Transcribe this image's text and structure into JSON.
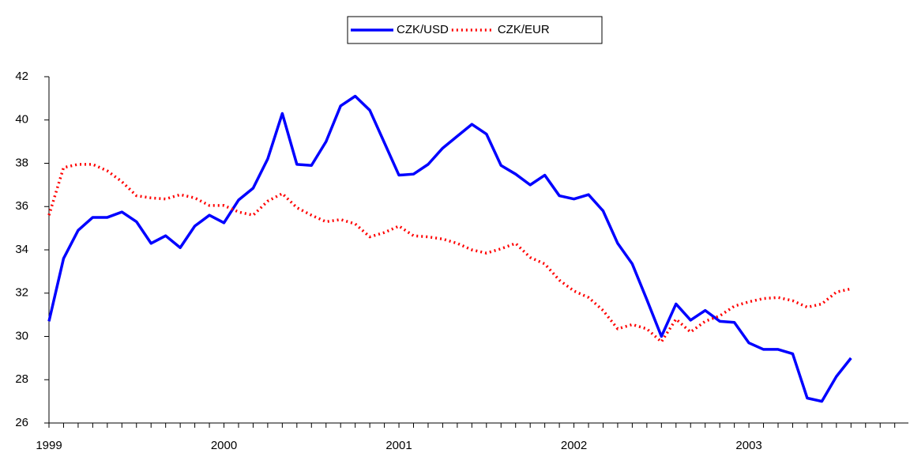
{
  "chart_data": {
    "type": "line",
    "categories": [
      "1999",
      null,
      null,
      null,
      null,
      null,
      null,
      null,
      null,
      null,
      null,
      null,
      "2000",
      null,
      null,
      null,
      null,
      null,
      null,
      null,
      null,
      null,
      null,
      null,
      "2001",
      null,
      null,
      null,
      null,
      null,
      null,
      null,
      null,
      null,
      null,
      null,
      "2002",
      null,
      null,
      null,
      null,
      null,
      null,
      null,
      null,
      null,
      null,
      null,
      "2003",
      null,
      null,
      null,
      null,
      null,
      null,
      null
    ],
    "series": [
      {
        "name": "CZK/USD",
        "color": "#0000ff",
        "style": "solid",
        "values": [
          30.7,
          33.6,
          34.9,
          35.5,
          35.5,
          35.75,
          35.3,
          34.3,
          34.65,
          34.1,
          35.1,
          35.6,
          35.25,
          36.3,
          36.85,
          38.2,
          40.3,
          37.95,
          37.9,
          39.0,
          40.65,
          41.1,
          40.45,
          38.95,
          37.45,
          37.5,
          37.95,
          38.7,
          39.25,
          39.8,
          39.35,
          37.9,
          37.5,
          37.0,
          37.45,
          36.5,
          36.35,
          36.55,
          35.8,
          34.3,
          33.35,
          31.7,
          30.0,
          31.5,
          30.75,
          31.2,
          30.7,
          30.65,
          29.7,
          29.4,
          29.4,
          29.2,
          27.15,
          27.0,
          28.15,
          29.0
        ]
      },
      {
        "name": "CZK/EUR",
        "color": "#ff0000",
        "style": "dotted",
        "values": [
          35.6,
          37.8,
          37.95,
          37.95,
          37.65,
          37.15,
          36.5,
          36.4,
          36.35,
          36.55,
          36.4,
          36.05,
          36.05,
          35.75,
          35.6,
          36.25,
          36.6,
          35.95,
          35.6,
          35.3,
          35.4,
          35.2,
          34.6,
          34.8,
          35.1,
          34.65,
          34.6,
          34.5,
          34.3,
          34.0,
          33.85,
          34.05,
          34.3,
          33.65,
          33.35,
          32.6,
          32.1,
          31.8,
          31.2,
          30.35,
          30.55,
          30.35,
          29.75,
          30.8,
          30.2,
          30.7,
          30.95,
          31.4,
          31.6,
          31.75,
          31.8,
          31.65,
          31.35,
          31.5,
          32.05,
          32.2
        ]
      }
    ],
    "ylim": [
      26,
      42
    ],
    "yticks": [
      26,
      28,
      30,
      32,
      34,
      36,
      38,
      40,
      42
    ],
    "grid": false
  }
}
